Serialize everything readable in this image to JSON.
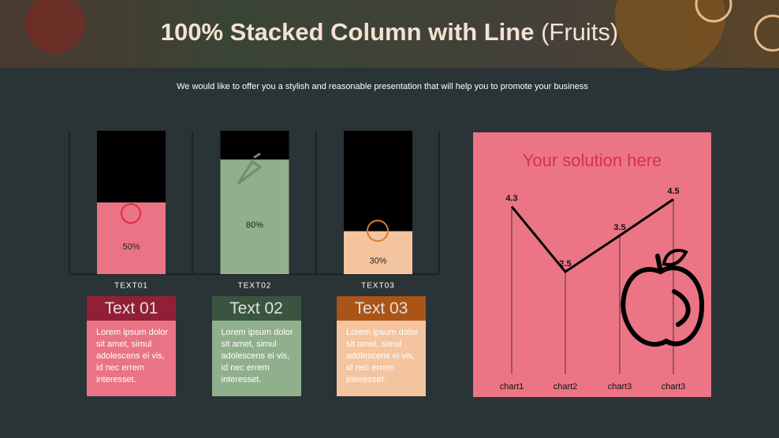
{
  "title": "100% Stacked Column with Line",
  "title_note": "(Fruits)",
  "subtitle": "We would like to offer you a stylish and reasonable presentation that will help you to promote your business",
  "cards": [
    {
      "title": "Text 01",
      "body": "Lorem ipsum dolor sit amet, simul adolescens ei vis, id nec errem interesset.",
      "header_color": "#a51c36",
      "body_color": "#ea7486"
    },
    {
      "title": "Text 02",
      "body": "Lorem ipsum dolor sit amet, simul adolescens ei vis, id nec errem interesset.",
      "header_color": "#3d5a41",
      "body_color": "#90b08d"
    },
    {
      "title": "Text 03",
      "body": "Lorem ipsum dolor sit amet, simul adolescens ei vis, id nec errem interesset.",
      "header_color": "#c25a13",
      "body_color": "#f4c49f"
    }
  ],
  "chart_data": [
    {
      "type": "stacked_bar",
      "categories": [
        "TEXT01",
        "TEXT02",
        "TEXT03"
      ],
      "ylim": [
        0,
        100
      ],
      "series": [
        {
          "colors": [
            "#ea7486",
            "#90b08d",
            "#f4c49f"
          ],
          "values": [
            50,
            80,
            30
          ],
          "value_labels": [
            "50%",
            "80%",
            "30%"
          ]
        },
        {
          "color": "#000000",
          "values": [
            50,
            20,
            70
          ]
        }
      ]
    },
    {
      "type": "line",
      "title": "Your solution here",
      "categories": [
        "chart1",
        "chart2",
        "chart3",
        "chart3"
      ],
      "values": [
        4.3,
        2.5,
        3.5,
        4.5
      ],
      "ylim": [
        0,
        5
      ],
      "color": "#000000",
      "background": "#ec7585"
    }
  ]
}
